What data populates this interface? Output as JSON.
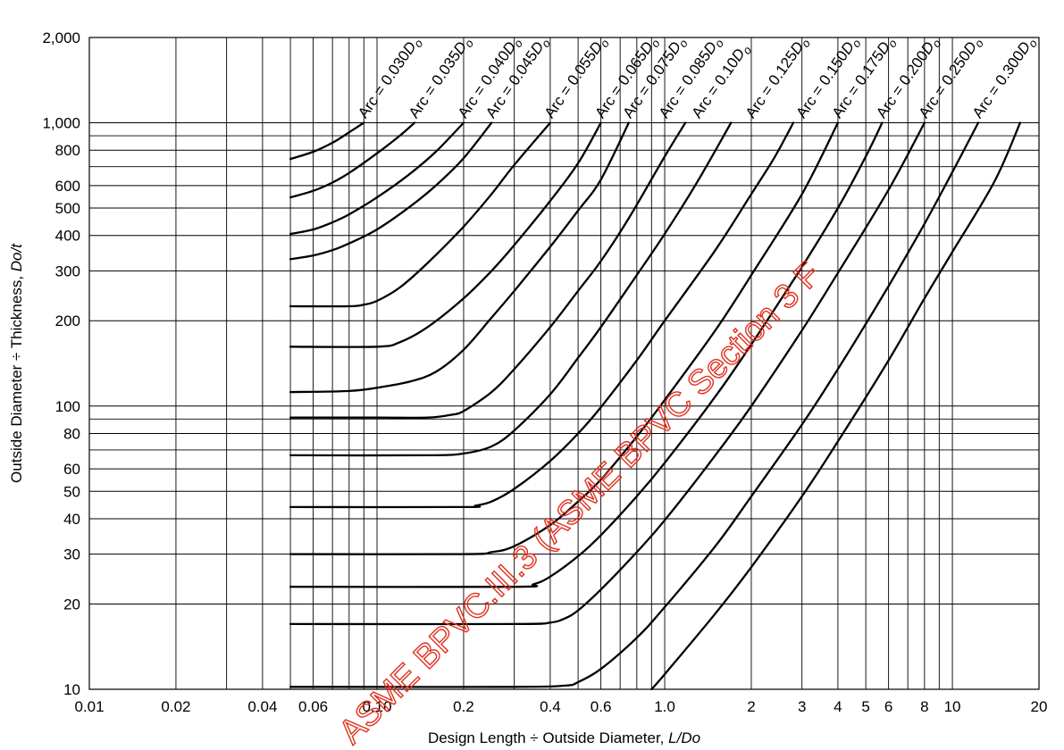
{
  "chart_data": {
    "type": "line",
    "x_scale": "log",
    "y_scale": "log",
    "xlim": [
      0.01,
      20
    ],
    "ylim": [
      10,
      2000
    ],
    "xlabel": "Design Length ÷ Outside Diameter, L/Do",
    "ylabel": "Outside Diameter ÷ Thickness, Do/t",
    "x_ticks": [
      {
        "value": 0.01,
        "label": "0.01"
      },
      {
        "value": 0.02,
        "label": "0.02"
      },
      {
        "value": 0.04,
        "label": "0.04"
      },
      {
        "value": 0.06,
        "label": "0.06"
      },
      {
        "value": 0.1,
        "label": "0.10"
      },
      {
        "value": 0.2,
        "label": "0.2"
      },
      {
        "value": 0.4,
        "label": "0.4"
      },
      {
        "value": 0.6,
        "label": "0.6"
      },
      {
        "value": 1.0,
        "label": "1.0"
      },
      {
        "value": 2,
        "label": "2"
      },
      {
        "value": 3,
        "label": "3"
      },
      {
        "value": 4,
        "label": "4"
      },
      {
        "value": 5,
        "label": "5"
      },
      {
        "value": 6,
        "label": "6"
      },
      {
        "value": 8,
        "label": "8"
      },
      {
        "value": 10,
        "label": "10"
      },
      {
        "value": 20,
        "label": "20"
      }
    ],
    "y_ticks": [
      {
        "value": 10,
        "label": "10"
      },
      {
        "value": 20,
        "label": "20"
      },
      {
        "value": 30,
        "label": "30"
      },
      {
        "value": 40,
        "label": "40"
      },
      {
        "value": 50,
        "label": "50"
      },
      {
        "value": 60,
        "label": "60"
      },
      {
        "value": 80,
        "label": "80"
      },
      {
        "value": 100,
        "label": "100"
      },
      {
        "value": 200,
        "label": "200"
      },
      {
        "value": 300,
        "label": "300"
      },
      {
        "value": 400,
        "label": "400"
      },
      {
        "value": 500,
        "label": "500"
      },
      {
        "value": 600,
        "label": "600"
      },
      {
        "value": 800,
        "label": "800"
      },
      {
        "value": 1000,
        "label": "1,000"
      },
      {
        "value": 2000,
        "label": "2,000"
      }
    ],
    "grid_x": [
      0.01,
      0.02,
      0.03,
      0.04,
      0.05,
      0.06,
      0.07,
      0.08,
      0.09,
      0.1,
      0.2,
      0.3,
      0.4,
      0.5,
      0.6,
      0.7,
      0.8,
      0.9,
      1.0,
      2,
      3,
      4,
      5,
      6,
      7,
      8,
      9,
      10,
      20
    ],
    "grid_y": [
      10,
      20,
      30,
      40,
      50,
      60,
      70,
      80,
      90,
      100,
      200,
      300,
      400,
      500,
      600,
      700,
      800,
      900,
      1000,
      2000
    ],
    "series": [
      {
        "name": "Arc = 0.030Do",
        "points": [
          [
            0.05,
            745
          ],
          [
            0.06,
            790
          ],
          [
            0.07,
            850
          ],
          [
            0.08,
            925
          ],
          [
            0.09,
            1000
          ]
        ]
      },
      {
        "name": "Arc = 0.035Do",
        "points": [
          [
            0.05,
            545
          ],
          [
            0.06,
            575
          ],
          [
            0.07,
            615
          ],
          [
            0.08,
            665
          ],
          [
            0.1,
            780
          ],
          [
            0.12,
            900
          ],
          [
            0.135,
            1000
          ]
        ]
      },
      {
        "name": "Arc = 0.040Do",
        "points": [
          [
            0.05,
            405
          ],
          [
            0.06,
            420
          ],
          [
            0.07,
            445
          ],
          [
            0.08,
            475
          ],
          [
            0.1,
            545
          ],
          [
            0.13,
            660
          ],
          [
            0.16,
            790
          ],
          [
            0.2,
            1000
          ]
        ]
      },
      {
        "name": "Arc = 0.045Do",
        "points": [
          [
            0.05,
            330
          ],
          [
            0.06,
            340
          ],
          [
            0.07,
            355
          ],
          [
            0.08,
            375
          ],
          [
            0.1,
            420
          ],
          [
            0.13,
            505
          ],
          [
            0.16,
            600
          ],
          [
            0.2,
            750
          ],
          [
            0.25,
            1000
          ]
        ]
      },
      {
        "name": "Arc = 0.055Do",
        "points": [
          [
            0.05,
            225
          ],
          [
            0.08,
            225
          ],
          [
            0.09,
            228
          ],
          [
            0.1,
            235
          ],
          [
            0.12,
            262
          ],
          [
            0.15,
            320
          ],
          [
            0.2,
            430
          ],
          [
            0.25,
            560
          ],
          [
            0.3,
            710
          ],
          [
            0.4,
            1000
          ]
        ]
      },
      {
        "name": "Arc = 0.065Do",
        "points": [
          [
            0.05,
            162
          ],
          [
            0.1,
            162
          ],
          [
            0.12,
            168
          ],
          [
            0.15,
            190
          ],
          [
            0.2,
            240
          ],
          [
            0.25,
            300
          ],
          [
            0.3,
            370
          ],
          [
            0.4,
            530
          ],
          [
            0.5,
            720
          ],
          [
            0.6,
            1000
          ]
        ]
      },
      {
        "name": "Arc = 0.075Do",
        "points": [
          [
            0.05,
            112
          ],
          [
            0.08,
            113
          ],
          [
            0.1,
            116
          ],
          [
            0.13,
            122
          ],
          [
            0.16,
            132
          ],
          [
            0.2,
            158
          ],
          [
            0.25,
            205
          ],
          [
            0.3,
            255
          ],
          [
            0.4,
            365
          ],
          [
            0.5,
            490
          ],
          [
            0.6,
            630
          ],
          [
            0.75,
            1000
          ]
        ]
      },
      {
        "name": "Arc = 0.085Do",
        "points": [
          [
            0.05,
            91
          ],
          [
            0.1,
            91
          ],
          [
            0.15,
            91
          ],
          [
            0.18,
            93
          ],
          [
            0.2,
            96
          ],
          [
            0.25,
            112
          ],
          [
            0.3,
            135
          ],
          [
            0.4,
            190
          ],
          [
            0.5,
            255
          ],
          [
            0.6,
            325
          ],
          [
            0.75,
            460
          ],
          [
            1.0,
            760
          ],
          [
            1.18,
            1000
          ]
        ]
      },
      {
        "name": "Arc = 0.10Do",
        "points": [
          [
            0.05,
            67
          ],
          [
            0.15,
            67
          ],
          [
            0.2,
            68
          ],
          [
            0.25,
            72
          ],
          [
            0.3,
            82
          ],
          [
            0.4,
            110
          ],
          [
            0.5,
            148
          ],
          [
            0.6,
            190
          ],
          [
            0.8,
            290
          ],
          [
            1.0,
            405
          ],
          [
            1.3,
            620
          ],
          [
            1.7,
            1000
          ]
        ]
      },
      {
        "name": "Arc = 0.125Do",
        "points": [
          [
            0.05,
            44
          ],
          [
            0.2,
            44
          ],
          [
            0.22,
            44.5
          ],
          [
            0.25,
            46
          ],
          [
            0.3,
            51
          ],
          [
            0.4,
            64
          ],
          [
            0.5,
            80
          ],
          [
            0.6,
            99
          ],
          [
            0.8,
            145
          ],
          [
            1.0,
            200
          ],
          [
            1.5,
            355
          ],
          [
            2.0,
            560
          ],
          [
            2.4,
            750
          ],
          [
            2.8,
            1000
          ]
        ]
      },
      {
        "name": "Arc = 0.150Do",
        "points": [
          [
            0.05,
            30
          ],
          [
            0.2,
            30
          ],
          [
            0.25,
            30.5
          ],
          [
            0.3,
            32
          ],
          [
            0.4,
            38
          ],
          [
            0.5,
            46
          ],
          [
            0.6,
            55
          ],
          [
            0.8,
            78
          ],
          [
            1.0,
            105
          ],
          [
            1.5,
            185
          ],
          [
            2.0,
            290
          ],
          [
            3.0,
            560
          ],
          [
            4.0,
            1000
          ]
        ]
      },
      {
        "name": "Arc = 0.175Do",
        "points": [
          [
            0.05,
            23
          ],
          [
            0.3,
            23
          ],
          [
            0.35,
            23.5
          ],
          [
            0.4,
            25
          ],
          [
            0.5,
            29.5
          ],
          [
            0.6,
            35
          ],
          [
            0.8,
            48
          ],
          [
            1.0,
            63
          ],
          [
            1.5,
            108
          ],
          [
            2.0,
            165
          ],
          [
            3.0,
            310
          ],
          [
            4.0,
            500
          ],
          [
            5.0,
            760
          ],
          [
            5.7,
            1000
          ]
        ]
      },
      {
        "name": "Arc = 0.200Do",
        "points": [
          [
            0.05,
            17
          ],
          [
            0.3,
            17
          ],
          [
            0.4,
            17.2
          ],
          [
            0.45,
            17.8
          ],
          [
            0.5,
            19
          ],
          [
            0.6,
            22.5
          ],
          [
            0.8,
            30.5
          ],
          [
            1.0,
            39.5
          ],
          [
            1.5,
            67
          ],
          [
            2.0,
            100
          ],
          [
            3.0,
            185
          ],
          [
            4.0,
            295
          ],
          [
            6.0,
            580
          ],
          [
            8.0,
            1000
          ]
        ]
      },
      {
        "name": "Arc = 0.250Do",
        "points": [
          [
            0.05,
            10.2
          ],
          [
            0.3,
            10.2
          ],
          [
            0.45,
            10.3
          ],
          [
            0.5,
            10.6
          ],
          [
            0.6,
            11.8
          ],
          [
            0.8,
            15.2
          ],
          [
            1.0,
            19.5
          ],
          [
            1.5,
            32
          ],
          [
            2.0,
            48
          ],
          [
            3.0,
            86
          ],
          [
            4.0,
            135
          ],
          [
            6.0,
            265
          ],
          [
            8.0,
            440
          ],
          [
            10.0,
            670
          ],
          [
            12.3,
            1000
          ]
        ]
      },
      {
        "name": "Arc = 0.300Do",
        "points": [
          [
            0.9,
            10
          ],
          [
            1.0,
            11.3
          ],
          [
            1.5,
            18.5
          ],
          [
            2.0,
            27
          ],
          [
            3.0,
            48
          ],
          [
            4.0,
            75
          ],
          [
            6.0,
            145
          ],
          [
            8.0,
            240
          ],
          [
            10.0,
            350
          ],
          [
            14.0,
            620
          ],
          [
            17.2,
            1000
          ]
        ]
      }
    ],
    "arc_labels": [
      {
        "prefix": "Arc = ",
        "value": "0.030",
        "unit": "D",
        "sub": "o",
        "anchor": [
          0.09,
          1000
        ]
      },
      {
        "prefix": "Arc = ",
        "value": "0.035",
        "unit": "D",
        "sub": "o",
        "anchor": [
          0.135,
          1000
        ]
      },
      {
        "prefix": "Arc = ",
        "value": "0.040",
        "unit": "D",
        "sub": "o",
        "anchor": [
          0.2,
          1000
        ]
      },
      {
        "prefix": "Arc = ",
        "value": "0.045",
        "unit": "D",
        "sub": "o",
        "anchor": [
          0.25,
          1000
        ]
      },
      {
        "prefix": "Arc = ",
        "value": "0.055",
        "unit": "D",
        "sub": "o",
        "anchor": [
          0.4,
          1000
        ]
      },
      {
        "prefix": "Arc = ",
        "value": "0.065",
        "unit": "D",
        "sub": "o",
        "anchor": [
          0.6,
          1000
        ]
      },
      {
        "prefix": "Arc = ",
        "value": "0.075",
        "unit": "D",
        "sub": "o",
        "anchor": [
          0.75,
          1000
        ]
      },
      {
        "prefix": "Arc = ",
        "value": "0.085",
        "unit": "D",
        "sub": "o",
        "anchor": [
          1.0,
          1000
        ]
      },
      {
        "prefix": "Arc = ",
        "value": "0.10",
        "unit": "D",
        "sub": "o",
        "anchor": [
          1.3,
          1000
        ]
      },
      {
        "prefix": "Arc = ",
        "value": "0.125",
        "unit": "D",
        "sub": "o",
        "anchor": [
          2.0,
          1000
        ]
      },
      {
        "prefix": "Arc = ",
        "value": "0.150",
        "unit": "D",
        "sub": "o",
        "anchor": [
          3.0,
          1000
        ]
      },
      {
        "prefix": "Arc = ",
        "value": "0.175",
        "unit": "D",
        "sub": "o",
        "anchor": [
          4.0,
          1000
        ]
      },
      {
        "prefix": "Arc = ",
        "value": "0.200",
        "unit": "D",
        "sub": "o",
        "anchor": [
          5.7,
          1000
        ]
      },
      {
        "prefix": "Arc = ",
        "value": "0.250",
        "unit": "D",
        "sub": "o",
        "anchor": [
          8.0,
          1000
        ]
      },
      {
        "prefix": "Arc = ",
        "value": "0.300",
        "unit": "D",
        "sub": "o",
        "anchor": [
          12.3,
          1000
        ]
      }
    ],
    "grid": true,
    "legend": "none",
    "line_color": "#000000",
    "watermark": {
      "text": "ASME BPVC.III.3 (ASME BPVC Section 3 F",
      "color": "#e0301e"
    }
  }
}
